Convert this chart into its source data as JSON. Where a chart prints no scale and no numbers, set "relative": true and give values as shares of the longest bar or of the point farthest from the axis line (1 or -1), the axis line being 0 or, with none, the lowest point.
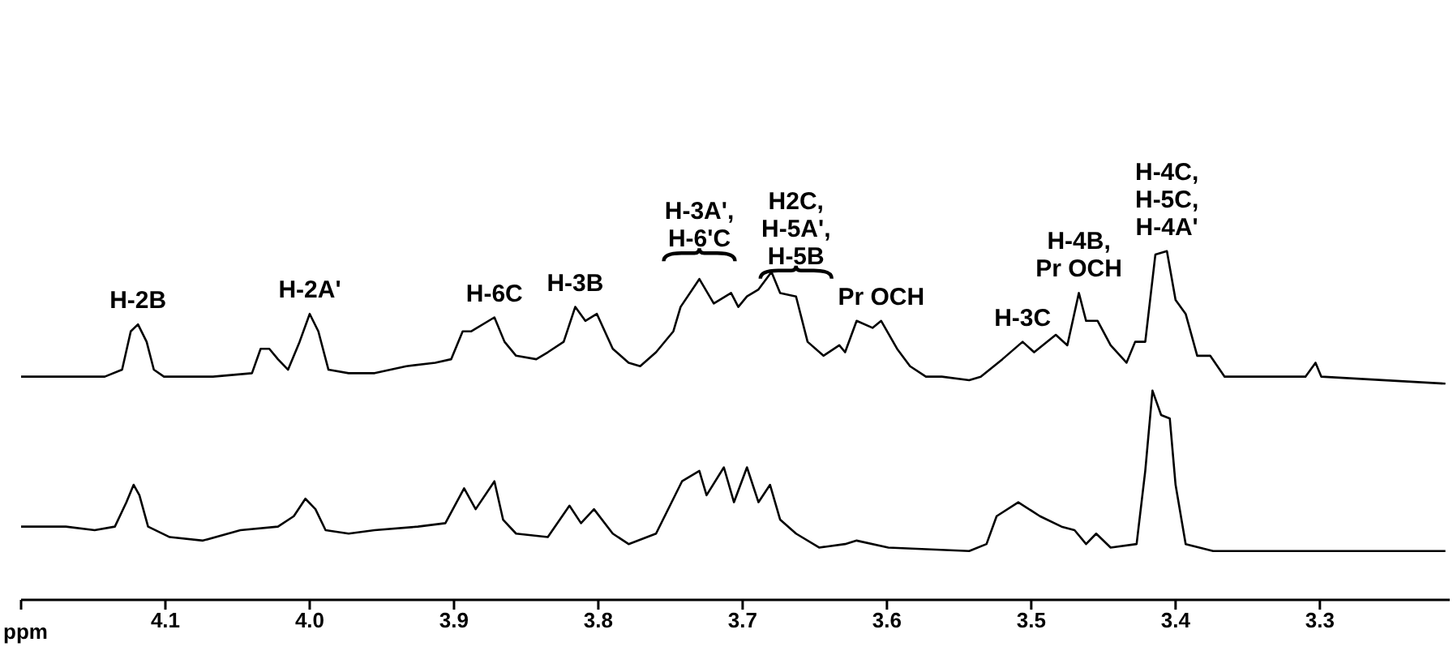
{
  "chart_data": {
    "type": "line",
    "relative": true,
    "xlabel": "ppm",
    "xlim": [
      4.2,
      3.21
    ],
    "xticks": [
      {
        "value": 4.2,
        "label": null
      },
      4.1,
      {
        "value": 4,
        "label": "4.0"
      },
      3.9,
      3.8,
      3.7,
      3.6,
      3.5,
      3.4,
      3.3
    ],
    "series": [
      {
        "color": "#000000",
        "x": [
          4.2,
          4.142,
          4.13,
          4.124,
          4.119,
          4.113,
          4.108,
          4.101,
          4.067,
          4.04,
          4.034,
          4.028,
          4.022,
          4.015,
          4.007,
          4.0,
          3.994,
          3.987,
          3.973,
          3.955,
          3.933,
          3.913,
          3.902,
          3.894,
          3.888,
          3.872,
          3.865,
          3.857,
          3.843,
          3.835,
          3.824,
          3.816,
          3.809,
          3.801,
          3.79,
          3.779,
          3.771,
          3.76,
          3.748,
          3.743,
          3.73,
          3.72,
          3.708,
          3.703,
          3.697,
          3.689,
          3.68,
          3.674,
          3.663,
          3.655,
          3.644,
          3.633,
          3.629,
          3.621,
          3.61,
          3.604,
          3.593,
          3.584,
          3.573,
          3.562,
          3.543,
          3.535,
          3.52,
          3.506,
          3.498,
          3.483,
          3.475,
          3.467,
          3.462,
          3.454,
          3.445,
          3.434,
          3.428,
          3.421,
          3.414,
          3.406,
          3.4,
          3.393,
          3.385,
          3.376,
          3.366,
          3.31,
          3.303,
          3.299,
          3.213
        ],
        "values": [
          0.64,
          0.64,
          0.66,
          0.77,
          0.79,
          0.74,
          0.66,
          0.64,
          0.64,
          0.65,
          0.72,
          0.72,
          0.69,
          0.66,
          0.74,
          0.82,
          0.77,
          0.66,
          0.65,
          0.65,
          0.67,
          0.68,
          0.69,
          0.77,
          0.77,
          0.81,
          0.74,
          0.7,
          0.69,
          0.71,
          0.74,
          0.84,
          0.8,
          0.82,
          0.72,
          0.68,
          0.67,
          0.71,
          0.77,
          0.84,
          0.92,
          0.85,
          0.88,
          0.84,
          0.87,
          0.89,
          0.94,
          0.88,
          0.87,
          0.74,
          0.7,
          0.73,
          0.71,
          0.8,
          0.78,
          0.8,
          0.72,
          0.67,
          0.64,
          0.64,
          0.63,
          0.64,
          0.69,
          0.74,
          0.71,
          0.76,
          0.73,
          0.88,
          0.8,
          0.8,
          0.73,
          0.68,
          0.74,
          0.74,
          0.99,
          1,
          0.86,
          0.82,
          0.7,
          0.7,
          0.64,
          0.64,
          0.68,
          0.64,
          0.62
        ]
      },
      {
        "color": "#000000",
        "x": [
          4.2,
          4.169,
          4.149,
          4.135,
          4.127,
          4.122,
          4.118,
          4.112,
          4.097,
          4.074,
          4.048,
          4.022,
          4.011,
          4.003,
          3.996,
          3.989,
          3.973,
          3.955,
          3.925,
          3.906,
          3.893,
          3.885,
          3.872,
          3.866,
          3.857,
          3.835,
          3.82,
          3.812,
          3.803,
          3.79,
          3.779,
          3.76,
          3.742,
          3.73,
          3.725,
          3.713,
          3.706,
          3.697,
          3.689,
          3.681,
          3.674,
          3.663,
          3.647,
          3.629,
          3.621,
          3.599,
          3.543,
          3.531,
          3.524,
          3.509,
          3.494,
          3.479,
          3.47,
          3.462,
          3.455,
          3.445,
          3.427,
          3.421,
          3.416,
          3.41,
          3.404,
          3.4,
          3.393,
          3.374,
          3.213
        ],
        "values": [
          0.21,
          0.21,
          0.2,
          0.21,
          0.28,
          0.33,
          0.3,
          0.21,
          0.18,
          0.17,
          0.2,
          0.21,
          0.24,
          0.29,
          0.26,
          0.2,
          0.19,
          0.2,
          0.21,
          0.22,
          0.32,
          0.26,
          0.34,
          0.23,
          0.19,
          0.18,
          0.27,
          0.22,
          0.26,
          0.19,
          0.16,
          0.19,
          0.34,
          0.37,
          0.3,
          0.38,
          0.28,
          0.38,
          0.28,
          0.33,
          0.23,
          0.19,
          0.15,
          0.16,
          0.17,
          0.15,
          0.14,
          0.16,
          0.24,
          0.28,
          0.24,
          0.21,
          0.2,
          0.16,
          0.19,
          0.15,
          0.16,
          0.37,
          0.6,
          0.53,
          0.52,
          0.33,
          0.16,
          0.14,
          0.14
        ]
      }
    ],
    "annotations": [
      {
        "text": "H-2B",
        "x": 4.119,
        "y": 0.79
      },
      {
        "text": "H-2A'",
        "x": 4.0,
        "y": 0.82
      },
      {
        "text": "H-6C",
        "x": 3.872,
        "y": 0.81
      },
      {
        "text": "H-3B",
        "x": 3.816,
        "y": 0.84
      },
      {
        "text": "H-3A',\nH-6'C",
        "x": 3.73,
        "y": 0.92
      },
      {
        "text": "H2C,\nH-5A',\nH-5B",
        "x": 3.663,
        "y": 0.87
      },
      {
        "text": "Pr OCH",
        "x": 3.604,
        "y": 0.8
      },
      {
        "text": "H-3C",
        "x": 3.506,
        "y": 0.74
      },
      {
        "text": "H-4B,\nPr OCH",
        "x": 3.467,
        "y": 0.88
      },
      {
        "text": "H-4C,\nH-5C,\nH-4A'",
        "x": 3.406,
        "y": 1
      }
    ]
  }
}
